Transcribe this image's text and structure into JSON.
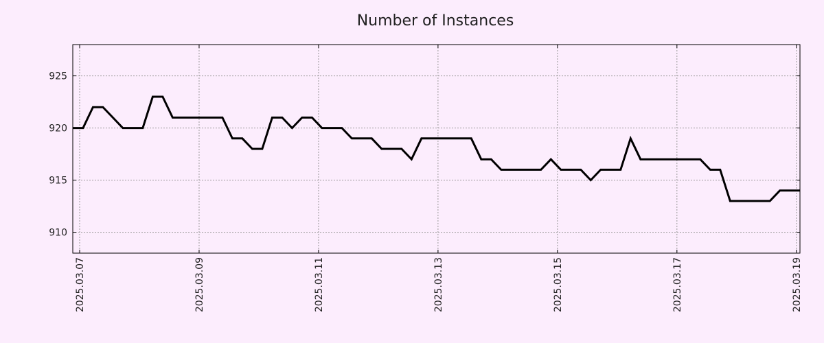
{
  "chart_data": {
    "type": "line",
    "title": "Number of Instances",
    "xlabel": "",
    "ylabel": "",
    "x_unit": "days since 2025.03.07",
    "x_start": -0.11,
    "x_step": 0.16667,
    "xlim": [
      -0.115,
      12.06
    ],
    "ylim": [
      908,
      928
    ],
    "grid": true,
    "x_ticks": [
      {
        "value": 0,
        "label": "2025.03.07"
      },
      {
        "value": 2,
        "label": "2025.03.09"
      },
      {
        "value": 4,
        "label": "2025.03.11"
      },
      {
        "value": 6,
        "label": "2025.03.13"
      },
      {
        "value": 8,
        "label": "2025.03.15"
      },
      {
        "value": 10,
        "label": "2025.03.17"
      },
      {
        "value": 12,
        "label": "2025.03.19"
      }
    ],
    "y_ticks": [
      {
        "value": 910,
        "label": "910"
      },
      {
        "value": 915,
        "label": "915"
      },
      {
        "value": 920,
        "label": "920"
      },
      {
        "value": 925,
        "label": "925"
      }
    ],
    "series": [
      {
        "name": "Number of Instances",
        "color": "#000000",
        "values": [
          920,
          920,
          922,
          922,
          921,
          920,
          920,
          920,
          923,
          923,
          921,
          921,
          921,
          921,
          921,
          921,
          919,
          919,
          918,
          918,
          921,
          921,
          920,
          921,
          921,
          920,
          920,
          920,
          919,
          919,
          919,
          918,
          918,
          918,
          917,
          919,
          919,
          919,
          919,
          919,
          919,
          917,
          917,
          916,
          916,
          916,
          916,
          916,
          917,
          916,
          916,
          916,
          915,
          916,
          916,
          916,
          919,
          917,
          917,
          917,
          917,
          917,
          917,
          917,
          916,
          916,
          913,
          913,
          913,
          913,
          913,
          914,
          914,
          914
        ]
      }
    ]
  }
}
